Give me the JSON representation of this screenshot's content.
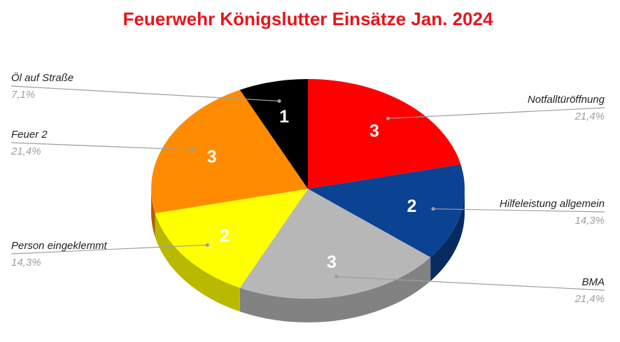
{
  "chart_data": {
    "type": "pie",
    "title": "Feuerwehr Königslutter Einsätze Jan. 2024",
    "title_color": "#e8141b",
    "style": "3d",
    "slices": [
      {
        "label": "Notfalltüröffnung",
        "value": 3,
        "percent": "21,4%",
        "color": "#ff0000",
        "side_color": "#b00000",
        "value_color": "#ffffff"
      },
      {
        "label": "Hilfeleistung allgemein",
        "value": 2,
        "percent": "14,3%",
        "color": "#0b4292",
        "side_color": "#072b60",
        "value_color": "#ffffff"
      },
      {
        "label": "BMA",
        "value": 3,
        "percent": "21,4%",
        "color": "#b7b7b7",
        "side_color": "#828282",
        "value_color": "#ffffff"
      },
      {
        "label": "Person eingeklemmt",
        "value": 2,
        "percent": "14,3%",
        "color": "#ffff00",
        "side_color": "#b9b900",
        "value_color": "#ffffff"
      },
      {
        "label": "Feuer 2",
        "value": 3,
        "percent": "21,4%",
        "color": "#ff8c00",
        "side_color": "#b35f00",
        "value_color": "#ffffff"
      },
      {
        "label": "Öl auf Straße",
        "value": 1,
        "percent": "7,1%",
        "color": "#000000",
        "side_color": "#000000",
        "value_color": "#ffffff"
      }
    ]
  }
}
